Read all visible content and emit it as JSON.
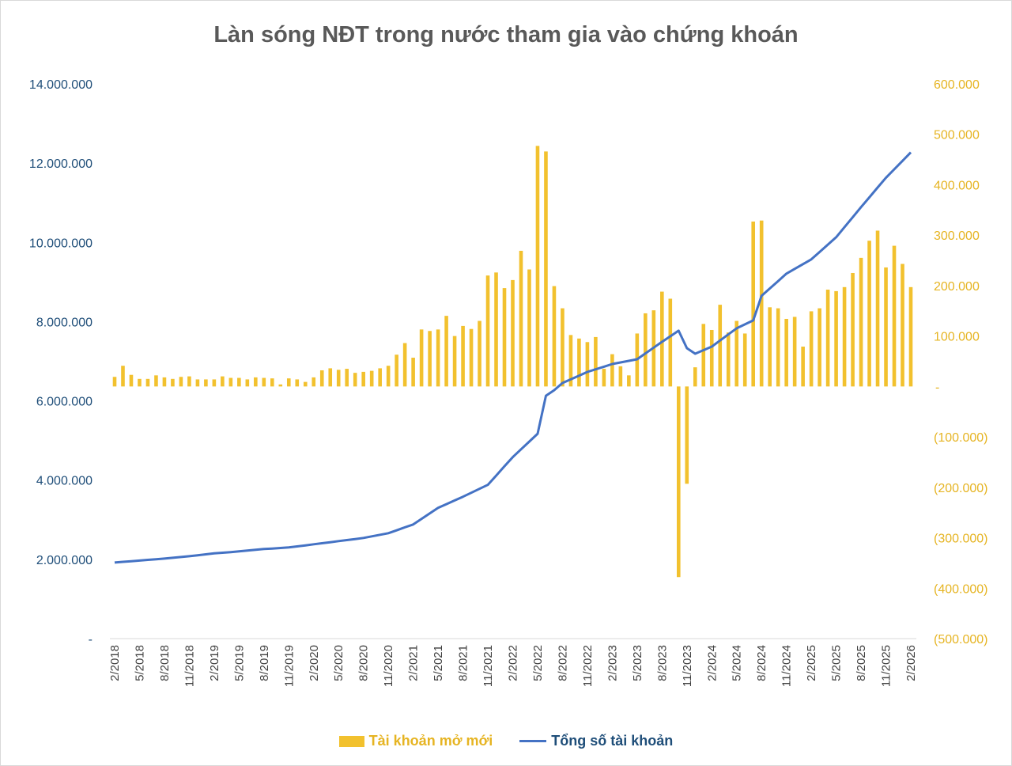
{
  "chart_data": {
    "type": "bar+line",
    "title": "Làn sóng NĐT trong nước tham gia vào chứng khoán",
    "x_start": "2/2018",
    "x_end": "2/2026",
    "x_tick_labels": [
      "2/2018",
      "5/2018",
      "8/2018",
      "11/2018",
      "2/2019",
      "5/2019",
      "8/2019",
      "11/2019",
      "2/2020",
      "5/2020",
      "8/2020",
      "11/2020",
      "2/2021",
      "5/2021",
      "8/2021",
      "11/2021",
      "2/2022",
      "5/2022",
      "8/2022",
      "11/2022",
      "2/2023",
      "5/2023",
      "8/2023",
      "11/2023",
      "2/2024",
      "5/2024",
      "8/2024",
      "11/2024",
      "2/2025",
      "5/2025",
      "8/2025",
      "11/2025",
      "2/2026"
    ],
    "left_axis": {
      "ylim": [
        0,
        14000000
      ],
      "tick_labels": [
        "-",
        "2.000.000",
        "4.000.000",
        "6.000.000",
        "8.000.000",
        "10.000.000",
        "12.000.000",
        "14.000.000"
      ]
    },
    "right_axis": {
      "ylim": [
        -500000,
        600000
      ],
      "tick_labels": [
        "(500.000)",
        "(400.000)",
        "(300.000)",
        "(200.000)",
        "(100.000)",
        "-",
        "100.000",
        "200.000",
        "300.000",
        "400.000",
        "500.000",
        "600.000"
      ]
    },
    "grid": false,
    "legend_position": "bottom",
    "colors": {
      "bars": "#f2c12e",
      "line": "#4472c4",
      "left_axis": "#1f4e79",
      "right_axis": "#e6b422",
      "title": "#595959"
    },
    "series": [
      {
        "name": "Tài khoản mở mới",
        "type": "bar",
        "axis": "right",
        "values": [
          19000,
          41000,
          23000,
          15000,
          15000,
          22000,
          18000,
          15000,
          19000,
          20000,
          14000,
          14000,
          14000,
          20000,
          17000,
          17000,
          14000,
          18000,
          17000,
          16000,
          4000,
          16000,
          14000,
          9000,
          18000,
          32000,
          36000,
          33000,
          35000,
          27000,
          29000,
          31000,
          36000,
          41000,
          63000,
          86000,
          57000,
          113000,
          110000,
          113000,
          140000,
          100000,
          120000,
          114000,
          130000,
          220000,
          226000,
          195000,
          211000,
          269000,
          232000,
          477000,
          466000,
          199000,
          155000,
          102000,
          95000,
          88000,
          98000,
          35000,
          64000,
          40000,
          22000,
          105000,
          145000,
          151000,
          188000,
          174000,
          -378000,
          -193000,
          38000,
          124000,
          112000,
          162000,
          107000,
          130000,
          105000,
          327000,
          329000,
          157000,
          155000,
          134000,
          138000,
          79000,
          149000,
          155000,
          192000,
          189000,
          197000,
          225000,
          255000,
          289000,
          309000,
          236000,
          279000,
          243000,
          197000
        ]
      },
      {
        "name": "Tổng số tài khoản",
        "type": "line",
        "axis": "left",
        "values": [
          1920000,
          1937000,
          1953000,
          1970000,
          1987000,
          2003000,
          2020000,
          2040000,
          2060000,
          2080000,
          2103000,
          2127000,
          2150000,
          2167000,
          2183000,
          2200000,
          2220000,
          2240000,
          2260000,
          2273000,
          2287000,
          2300000,
          2327000,
          2353000,
          2380000,
          2407000,
          2433000,
          2460000,
          2487000,
          2513000,
          2540000,
          2580000,
          2620000,
          2660000,
          2733000,
          2807000,
          2880000,
          3020000,
          3160000,
          3300000,
          3393000,
          3487000,
          3580000,
          3680000,
          3780000,
          3880000,
          4113000,
          4347000,
          4580000,
          4777000,
          4973000,
          5170000,
          6130000,
          6270000,
          6450000,
          6543000,
          6637000,
          6730000,
          6797000,
          6863000,
          6930000,
          6970000,
          7010000,
          7050000,
          7197000,
          7343000,
          7490000,
          7630000,
          7770000,
          7330000,
          7190000,
          7280000,
          7370000,
          7523000,
          7677000,
          7830000,
          7930000,
          8030000,
          8650000,
          8837000,
          9023000,
          9210000,
          9330000,
          9450000,
          9570000,
          9757000,
          9943000,
          10130000,
          10383000,
          10637000,
          10890000,
          11137000,
          11383000,
          11630000,
          11843000,
          12057000,
          12270000
        ]
      }
    ]
  }
}
